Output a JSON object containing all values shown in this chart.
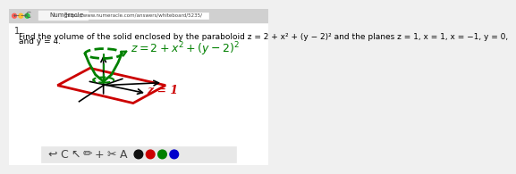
{
  "bg_color": "#f0f0f0",
  "content_bg": "#ffffff",
  "title_bar_color": "#e8e8e8",
  "browser_bar_color": "#d8d8d8",
  "tab_text": "Numeracle",
  "url_text": "https://www.numeracle.com/answers/whiteboard/5235/",
  "problem_text": "Find the volume of the solid enclosed by the paraboloid z = 2 + x² + (y − 2)² and the planes z = 1, x = 1, x = −1, y = 0,",
  "problem_text2": "and y = 4.",
  "equation_label": "z=2+x²+(y-2)²",
  "plane_label": "z = 1",
  "paraboloid_color": "#008000",
  "plane_color": "#cc0000",
  "axis_color": "#000000",
  "toolbar_bg": "#e8e8e8",
  "dot_colors": [
    "#111111",
    "#cc0000",
    "#008000",
    "#0000cc"
  ]
}
